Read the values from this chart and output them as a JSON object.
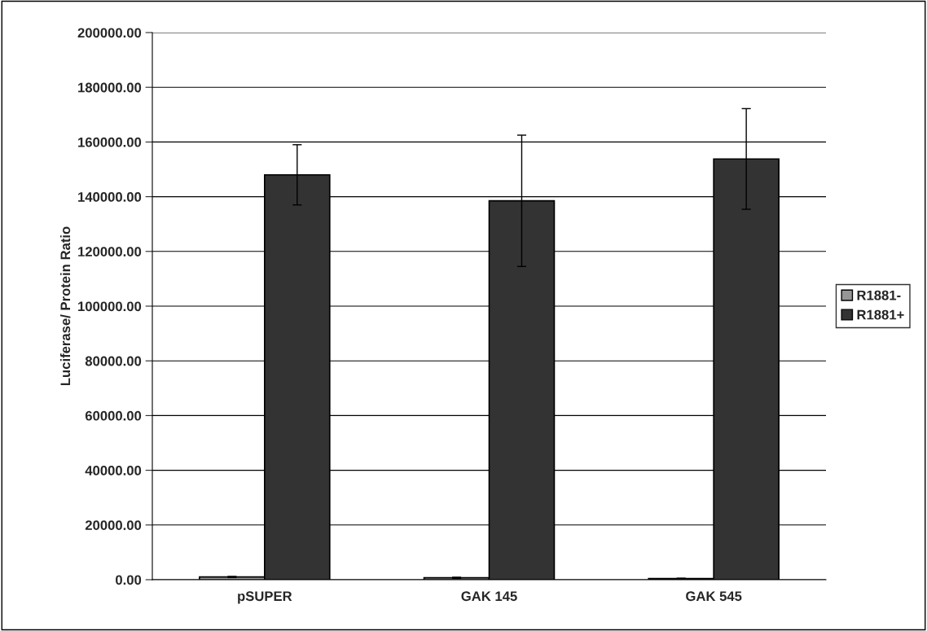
{
  "chart_data": {
    "type": "bar",
    "ylabel": "Luciferase/ Protein Ratio",
    "categories": [
      "pSUPER",
      "GAK 145",
      "GAK 545"
    ],
    "series": [
      {
        "name": "R1881-",
        "color": "#969696",
        "values": [
          1000,
          700,
          400
        ],
        "errors": [
          200,
          200,
          150
        ]
      },
      {
        "name": "R1881+",
        "color": "#333333",
        "values": [
          148000,
          138500,
          153800
        ],
        "errors": [
          11000,
          24000,
          18400
        ]
      }
    ],
    "ylim": [
      0,
      200000
    ],
    "yticks": [
      {
        "value": 0,
        "label": "0.00"
      },
      {
        "value": 20000,
        "label": "20000.00"
      },
      {
        "value": 40000,
        "label": "40000.00"
      },
      {
        "value": 60000,
        "label": "60000.00"
      },
      {
        "value": 80000,
        "label": "80000.00"
      },
      {
        "value": 100000,
        "label": "100000.00"
      },
      {
        "value": 120000,
        "label": "120000.00"
      },
      {
        "value": 140000,
        "label": "140000.00"
      },
      {
        "value": 160000,
        "label": "160000.00"
      },
      {
        "value": 180000,
        "label": "180000.00"
      },
      {
        "value": 200000,
        "label": "200000.00"
      }
    ],
    "grid": "y",
    "legend": "right"
  }
}
